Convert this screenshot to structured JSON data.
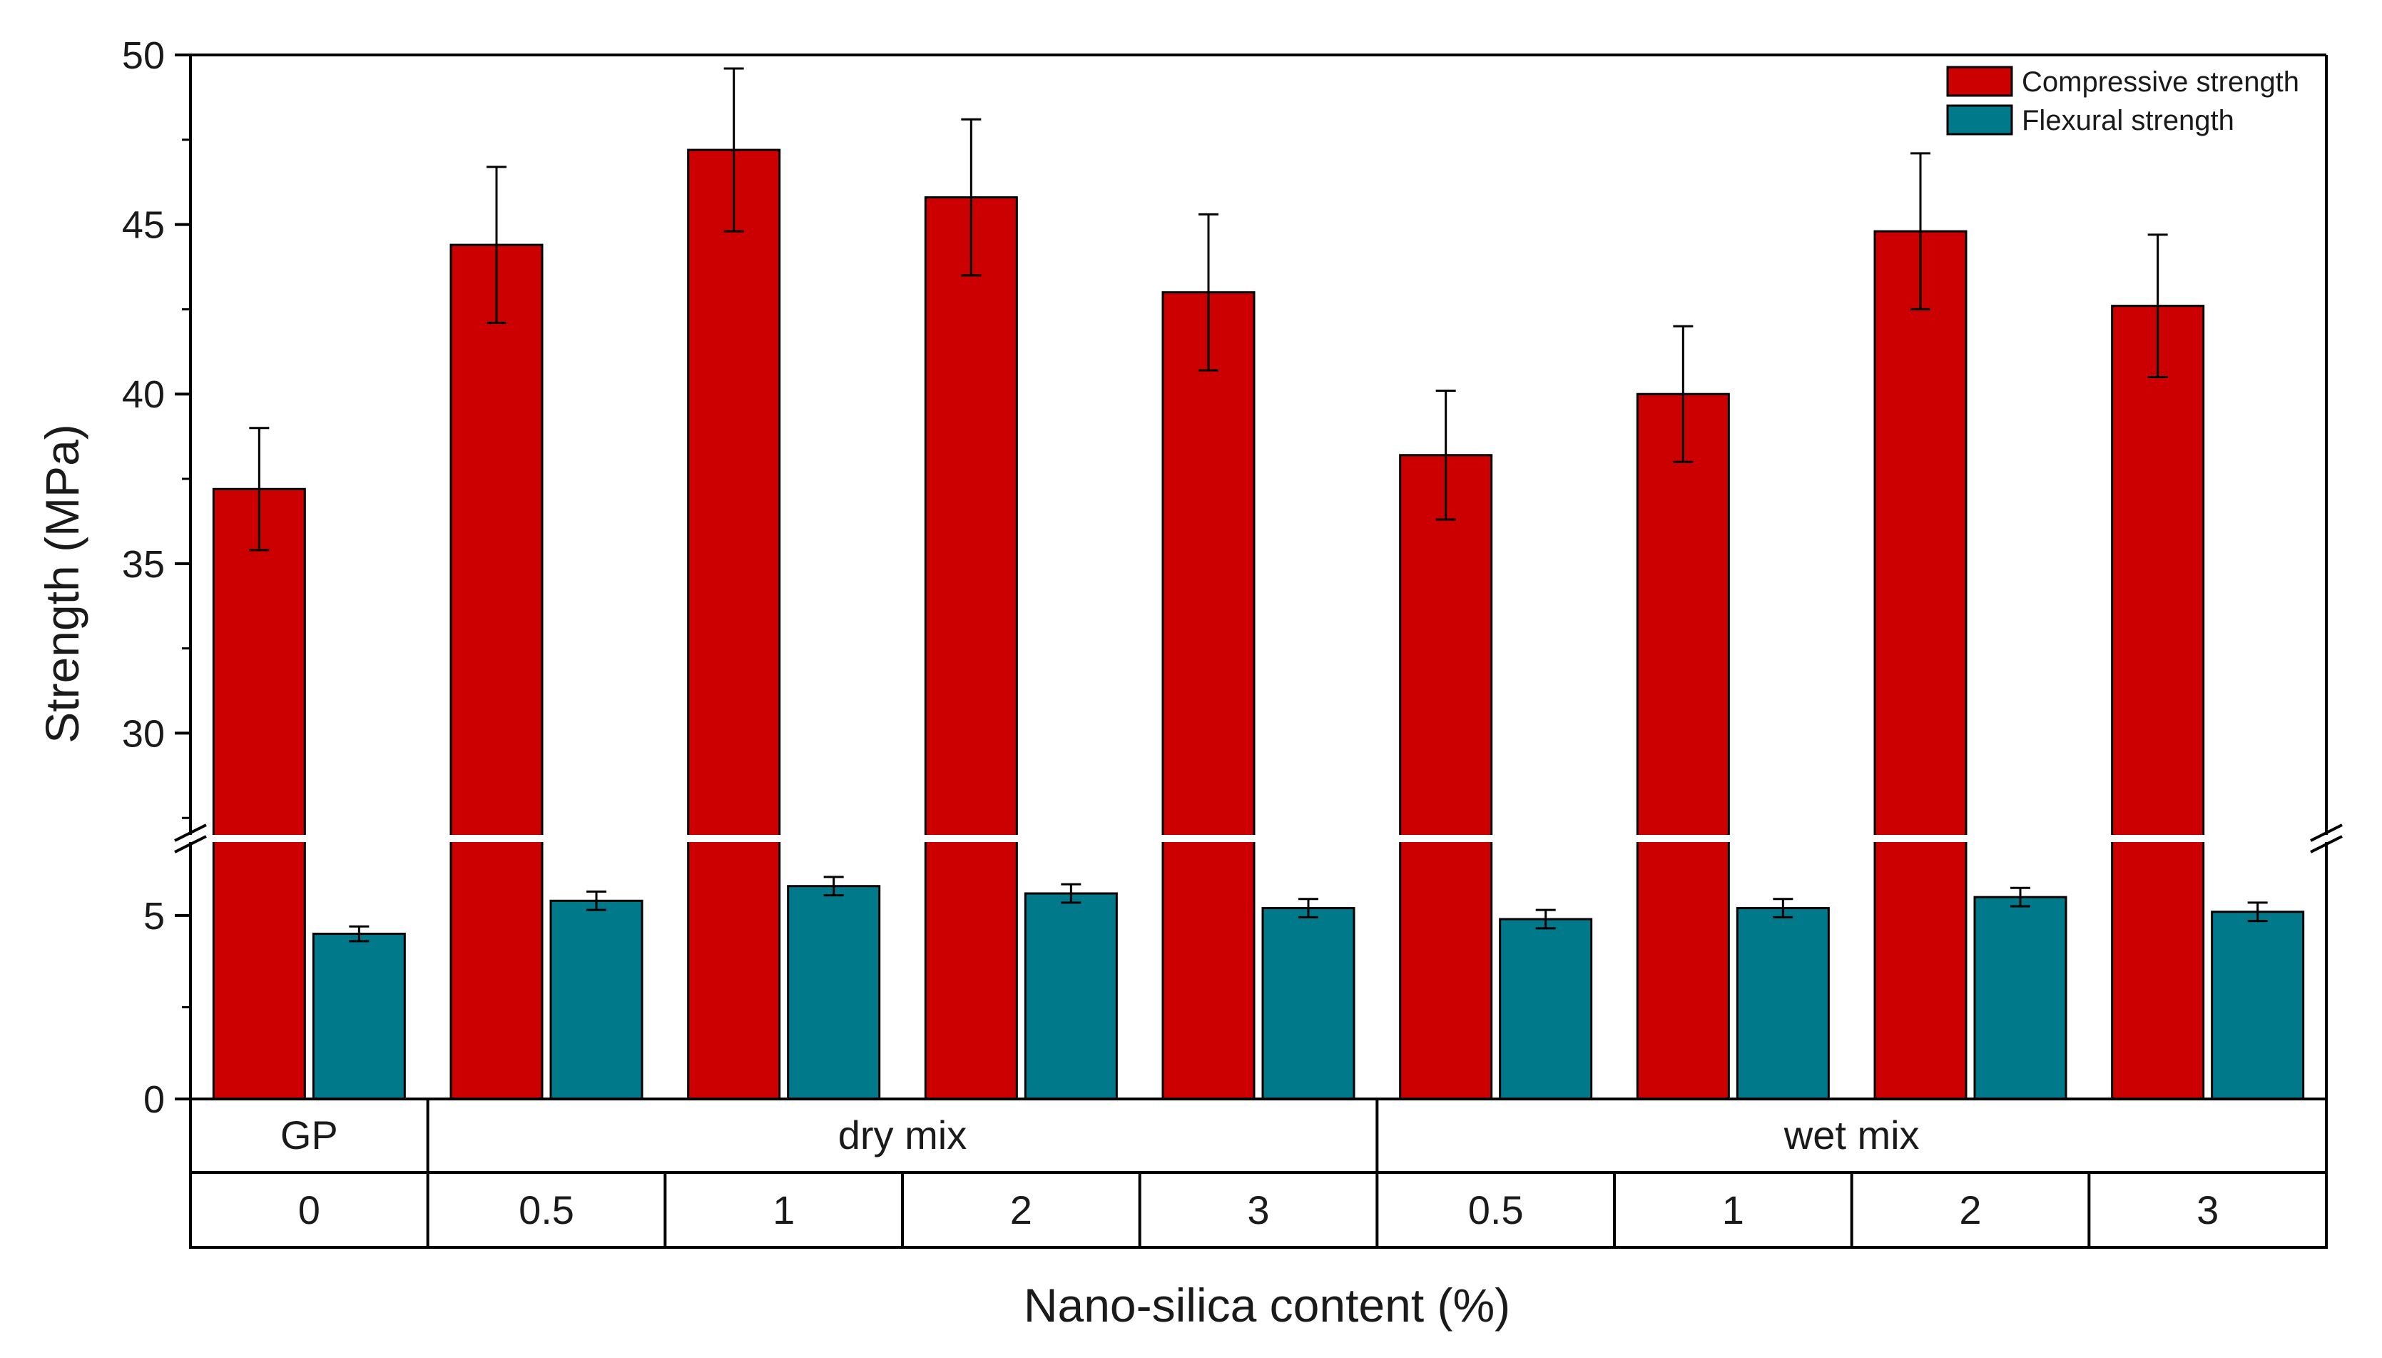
{
  "chart_data": {
    "type": "bar",
    "title": "",
    "xlabel": "Nano-silica content (%)",
    "ylabel": "Strength (MPa)",
    "axis_break": {
      "lower_range": [
        0,
        7
      ],
      "upper_range": [
        27,
        50
      ]
    },
    "y_ticks_lower": [
      "0",
      "5"
    ],
    "y_ticks_upper": [
      "30",
      "35",
      "40",
      "45",
      "50"
    ],
    "groups": [
      {
        "label": "GP",
        "span": [
          0,
          0
        ]
      },
      {
        "label": "dry mix",
        "span": [
          1,
          4
        ]
      },
      {
        "label": "wet mix",
        "span": [
          5,
          8
        ]
      }
    ],
    "categories": [
      "0",
      "0.5",
      "1",
      "2",
      "3",
      "0.5",
      "1",
      "2",
      "3"
    ],
    "series": [
      {
        "name": "Compressive strength",
        "color": "#cc0000",
        "values": [
          37.2,
          44.4,
          47.2,
          45.8,
          43.0,
          38.2,
          40.0,
          44.8,
          42.6
        ],
        "errors": [
          1.8,
          2.3,
          2.4,
          2.3,
          2.3,
          1.9,
          2.0,
          2.3,
          2.1
        ]
      },
      {
        "name": "Flexural strength",
        "color": "#007a8a",
        "values": [
          4.5,
          5.4,
          5.8,
          5.6,
          5.2,
          4.9,
          5.2,
          5.5,
          5.1
        ],
        "errors": [
          0.2,
          0.25,
          0.25,
          0.25,
          0.25,
          0.25,
          0.25,
          0.25,
          0.25
        ]
      }
    ],
    "legend_position": "top-right"
  }
}
